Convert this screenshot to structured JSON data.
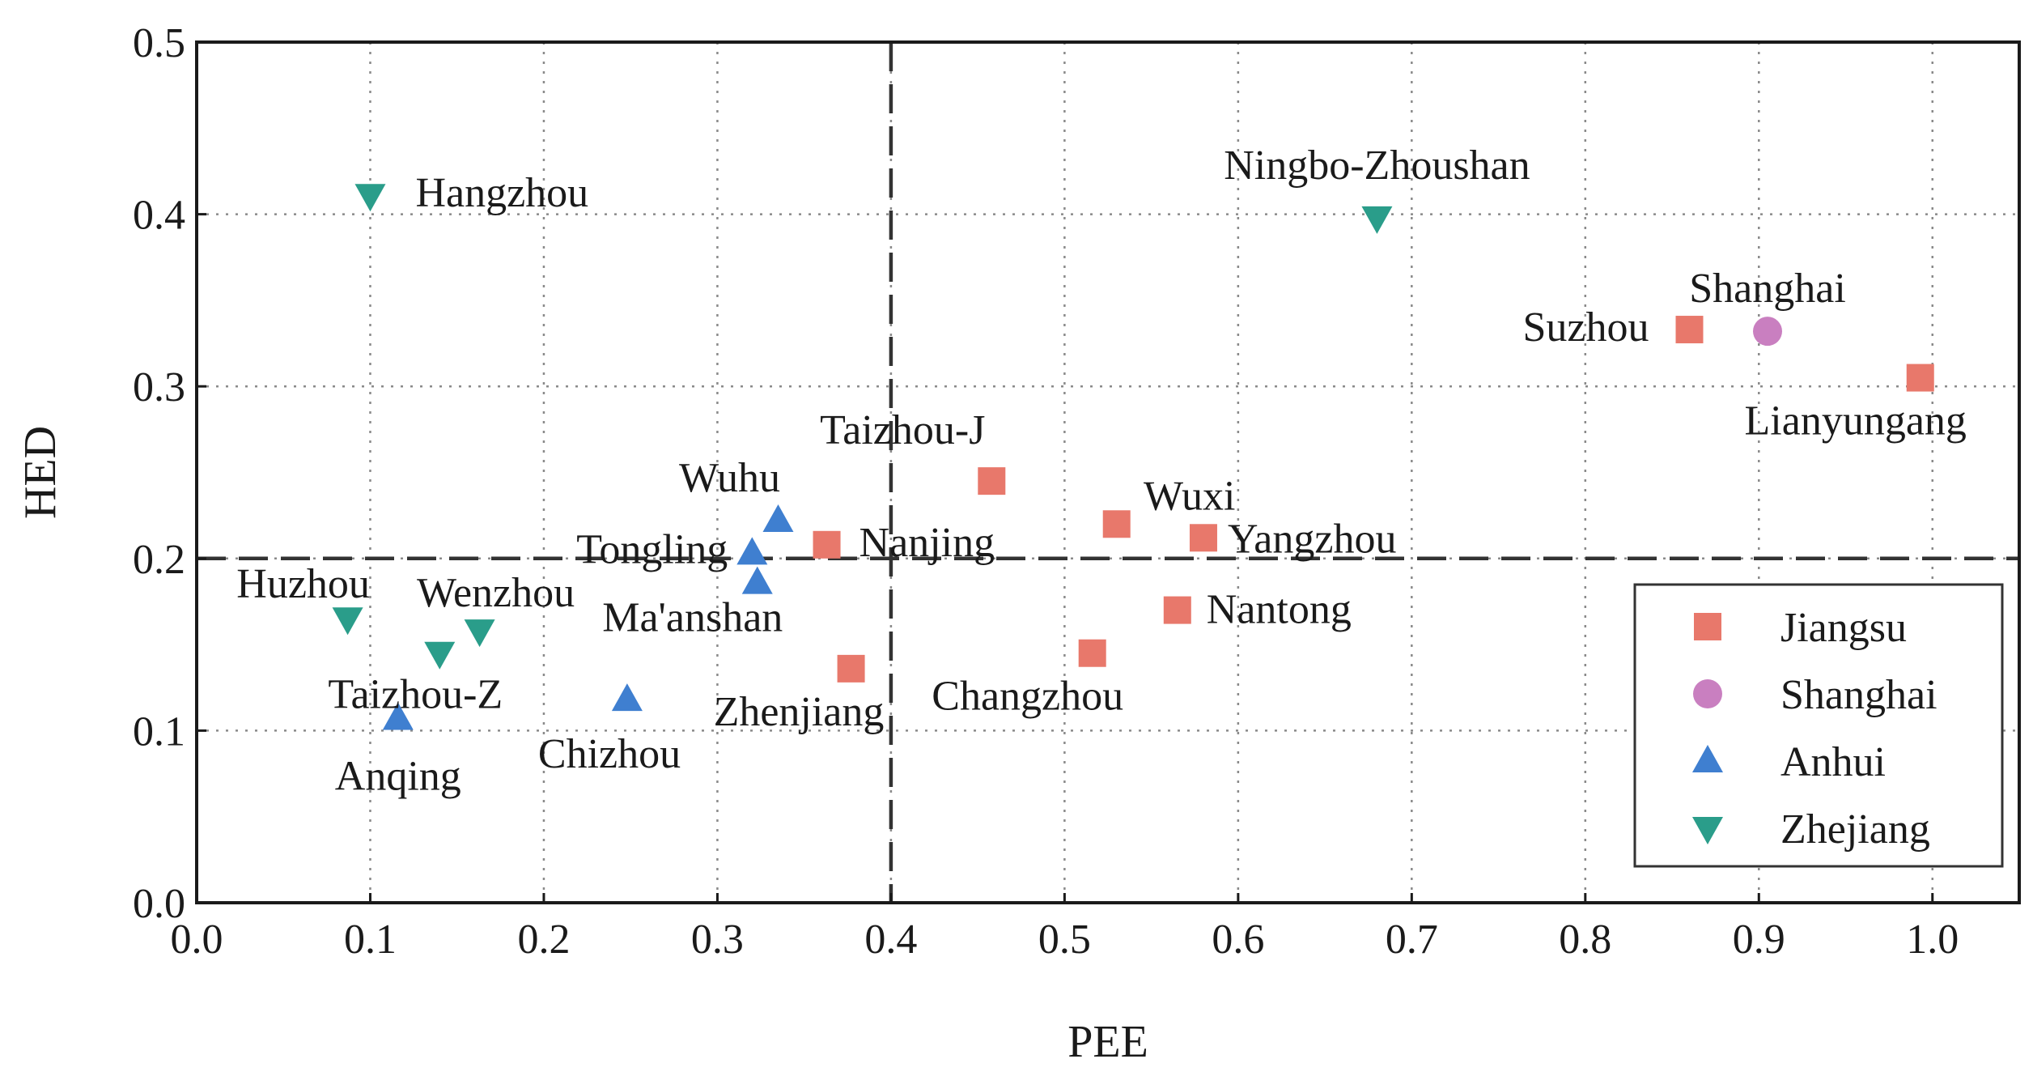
{
  "chart_data": {
    "type": "scatter",
    "xlabel": "PEE",
    "ylabel": "HED",
    "xlim": [
      0.0,
      1.05
    ],
    "ylim": [
      0.0,
      0.5
    ],
    "x_ticks": [
      "0.0",
      "0.1",
      "0.2",
      "0.3",
      "0.4",
      "0.5",
      "0.6",
      "0.7",
      "0.8",
      "0.9",
      "1.0"
    ],
    "y_ticks": [
      "0.0",
      "0.1",
      "0.2",
      "0.3",
      "0.4",
      "0.5"
    ],
    "grid": true,
    "reference_lines": {
      "x": 0.4,
      "y": 0.2
    },
    "legend_position": "bottom-right",
    "series": [
      {
        "name": "Jiangsu",
        "marker": "square",
        "color": "#e8786b",
        "points": [
          {
            "label": "Suzhou",
            "x": 0.86,
            "y": 0.333
          },
          {
            "label": "Lianyungang",
            "x": 0.993,
            "y": 0.305
          },
          {
            "label": "Taizhou-J",
            "x": 0.458,
            "y": 0.245
          },
          {
            "label": "Wuxi",
            "x": 0.53,
            "y": 0.22
          },
          {
            "label": "Yangzhou",
            "x": 0.58,
            "y": 0.212
          },
          {
            "label": "Nanjing",
            "x": 0.363,
            "y": 0.208
          },
          {
            "label": "Nantong",
            "x": 0.565,
            "y": 0.17
          },
          {
            "label": "Changzhou",
            "x": 0.516,
            "y": 0.145
          },
          {
            "label": "Zhenjiang",
            "x": 0.377,
            "y": 0.136
          }
        ]
      },
      {
        "name": "Shanghai",
        "marker": "circle",
        "color": "#c97fc0",
        "points": [
          {
            "label": "Shanghai",
            "x": 0.905,
            "y": 0.332
          }
        ]
      },
      {
        "name": "Anhui",
        "marker": "triangle-up",
        "color": "#3f7fd0",
        "points": [
          {
            "label": "Wuhu",
            "x": 0.335,
            "y": 0.222
          },
          {
            "label": "Tongling",
            "x": 0.32,
            "y": 0.203
          },
          {
            "label": "Ma'anshan",
            "x": 0.323,
            "y": 0.186
          },
          {
            "label": "Chizhou",
            "x": 0.248,
            "y": 0.118
          },
          {
            "label": "Anqing",
            "x": 0.116,
            "y": 0.107
          }
        ]
      },
      {
        "name": "Zhejiang",
        "marker": "triangle-down",
        "color": "#2a9d8a",
        "points": [
          {
            "label": "Hangzhou",
            "x": 0.1,
            "y": 0.411
          },
          {
            "label": "Ningbo-Zhoushan",
            "x": 0.68,
            "y": 0.398
          },
          {
            "label": "Huzhou",
            "x": 0.087,
            "y": 0.165
          },
          {
            "label": "Wenzhou",
            "x": 0.163,
            "y": 0.158
          },
          {
            "label": "Taizhou-Z",
            "x": 0.14,
            "y": 0.145
          }
        ]
      }
    ]
  }
}
